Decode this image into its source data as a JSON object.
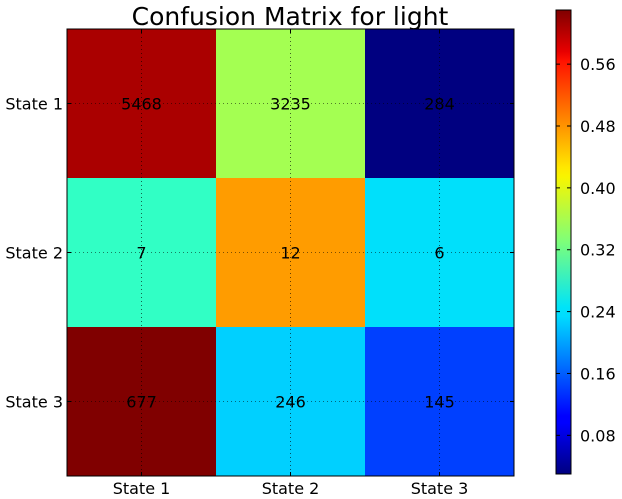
{
  "chart_data": {
    "type": "heatmap",
    "title": "Confusion Matrix for light",
    "xlabel": "",
    "ylabel": "",
    "x_categories": [
      "State 1",
      "State 2",
      "State 3"
    ],
    "y_categories": [
      "State 1",
      "State 2",
      "State 3"
    ],
    "cell_values": [
      [
        5468,
        3235,
        284
      ],
      [
        7,
        12,
        6
      ],
      [
        677,
        246,
        145
      ]
    ],
    "cell_colors": [
      [
        "#aa0000",
        "#a4ff52",
        "#000080"
      ],
      [
        "#31ffc5",
        "#ff9c00",
        "#00e0fb"
      ],
      [
        "#800000",
        "#00d0ff",
        "#0040ff"
      ]
    ],
    "colorbar": {
      "colormap": "jet",
      "range": [
        0.03,
        0.63
      ],
      "ticks": [
        "0.08",
        "0.16",
        "0.24",
        "0.32",
        "0.40",
        "0.48",
        "0.56"
      ]
    },
    "grid": true
  }
}
